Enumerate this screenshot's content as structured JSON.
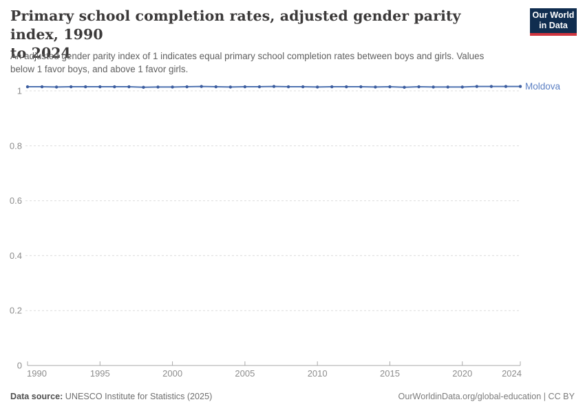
{
  "header": {
    "title_line1": "Primary school completion rates, adjusted gender parity index, 1990",
    "title_line2": "to 2024",
    "subtitle_line1": "An adjusted gender parity index of 1 indicates equal primary school completion rates between boys and girls. Values",
    "subtitle_line2": "below 1 favor boys, and above 1 favor girls.",
    "logo": {
      "line1": "Our World",
      "line2": "in Data",
      "bg_color": "#102d4f",
      "accent_color": "#d0353f"
    }
  },
  "footer": {
    "datasource_label": "Data source:",
    "datasource_value": "UNESCO Institute for Statistics (2025)",
    "attribution": "OurWorldinData.org/global-education | CC BY"
  },
  "chart_data": {
    "type": "line",
    "title": "Primary school completion rates, adjusted gender parity index, 1990 to 2024",
    "subtitle": "An adjusted gender parity index of 1 indicates equal primary school completion rates between boys and girls. Values below 1 favor boys, and above 1 favor girls.",
    "xlabel": "",
    "ylabel": "",
    "xlim": [
      1990,
      2024
    ],
    "ylim": [
      0,
      1
    ],
    "grid": "dashed-horizontal",
    "legend_position": "end-of-line-label",
    "xticks": [
      1990,
      1995,
      2000,
      2005,
      2010,
      2015,
      2020,
      2024
    ],
    "yticks": [
      0,
      0.2,
      0.4,
      0.6,
      0.8,
      1
    ],
    "ytick_labels": [
      "0",
      "0.2",
      "0.4",
      "0.6",
      "0.8",
      "1"
    ],
    "colors": {
      "line": "#4e72b0",
      "marker": "#3b5c9e",
      "entity_label": "#5b7fc3",
      "gridline": "#dcdcdc",
      "axis": "#a8a8a8",
      "tick_label": "#8c8c8c"
    },
    "series": [
      {
        "name": "Moldova",
        "color": "#4e72b0",
        "x": [
          1990,
          1991,
          1992,
          1993,
          1994,
          1995,
          1996,
          1997,
          1998,
          1999,
          2000,
          2001,
          2002,
          2003,
          2004,
          2005,
          2006,
          2007,
          2008,
          2009,
          2010,
          2011,
          2012,
          2013,
          2014,
          2015,
          2016,
          2017,
          2018,
          2019,
          2020,
          2021,
          2022,
          2023,
          2024
        ],
        "values": [
          1.015,
          1.015,
          1.014,
          1.015,
          1.015,
          1.015,
          1.015,
          1.015,
          1.013,
          1.014,
          1.014,
          1.015,
          1.016,
          1.015,
          1.014,
          1.015,
          1.015,
          1.016,
          1.015,
          1.015,
          1.014,
          1.015,
          1.015,
          1.015,
          1.014,
          1.015,
          1.013,
          1.015,
          1.014,
          1.014,
          1.014,
          1.016,
          1.016,
          1.016,
          1.016
        ]
      }
    ]
  }
}
